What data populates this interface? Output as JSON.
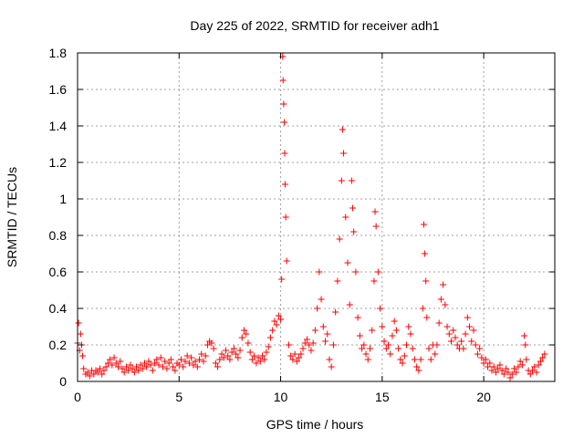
{
  "chart_data": {
    "type": "scatter",
    "title": "Day 225 of 2022, SRMTID for receiver adh1",
    "xlabel": "GPS time / hours",
    "ylabel": "SRMTID / TECUs",
    "xlim": [
      0,
      23.5
    ],
    "ylim": [
      0,
      1.8
    ],
    "x_ticks": [
      0,
      5,
      10,
      15,
      20
    ],
    "y_ticks": [
      0,
      0.2,
      0.4,
      0.6,
      0.8,
      1,
      1.2,
      1.4,
      1.6,
      1.8
    ],
    "x_tick_labels": [
      "0",
      "5",
      "10",
      "15",
      "20"
    ],
    "y_tick_labels": [
      "0",
      "0.2",
      "0.4",
      "0.6",
      "0.8",
      "1",
      "1.2",
      "1.4",
      "1.6",
      "1.8"
    ],
    "grid": true,
    "marker": "plus",
    "color": "#ff0000",
    "series": [
      {
        "name": "adh1",
        "points": [
          [
            0.0,
            0.21
          ],
          [
            0.05,
            0.32
          ],
          [
            0.1,
            0.17
          ],
          [
            0.15,
            0.26
          ],
          [
            0.2,
            0.2
          ],
          [
            0.25,
            0.14
          ],
          [
            0.3,
            0.07
          ],
          [
            0.4,
            0.04
          ],
          [
            0.5,
            0.05
          ],
          [
            0.6,
            0.03
          ],
          [
            0.7,
            0.06
          ],
          [
            0.8,
            0.04
          ],
          [
            0.9,
            0.06
          ],
          [
            1.0,
            0.05
          ],
          [
            1.1,
            0.07
          ],
          [
            1.2,
            0.04
          ],
          [
            1.3,
            0.06
          ],
          [
            1.4,
            0.08
          ],
          [
            1.5,
            0.1
          ],
          [
            1.6,
            0.12
          ],
          [
            1.7,
            0.09
          ],
          [
            1.8,
            0.13
          ],
          [
            1.9,
            0.1
          ],
          [
            2.0,
            0.08
          ],
          [
            2.1,
            0.11
          ],
          [
            2.2,
            0.07
          ],
          [
            2.3,
            0.05
          ],
          [
            2.4,
            0.08
          ],
          [
            2.5,
            0.06
          ],
          [
            2.6,
            0.09
          ],
          [
            2.7,
            0.07
          ],
          [
            2.8,
            0.05
          ],
          [
            2.9,
            0.08
          ],
          [
            3.0,
            0.06
          ],
          [
            3.1,
            0.09
          ],
          [
            3.2,
            0.07
          ],
          [
            3.3,
            0.1
          ],
          [
            3.4,
            0.08
          ],
          [
            3.5,
            0.11
          ],
          [
            3.6,
            0.09
          ],
          [
            3.7,
            0.06
          ],
          [
            3.8,
            0.1
          ],
          [
            3.9,
            0.12
          ],
          [
            4.0,
            0.09
          ],
          [
            4.1,
            0.13
          ],
          [
            4.2,
            0.08
          ],
          [
            4.3,
            0.11
          ],
          [
            4.4,
            0.07
          ],
          [
            4.5,
            0.1
          ],
          [
            4.6,
            0.12
          ],
          [
            4.7,
            0.08
          ],
          [
            4.8,
            0.06
          ],
          [
            4.9,
            0.1
          ],
          [
            5.0,
            0.09
          ],
          [
            5.1,
            0.12
          ],
          [
            5.2,
            0.08
          ],
          [
            5.3,
            0.11
          ],
          [
            5.4,
            0.14
          ],
          [
            5.5,
            0.1
          ],
          [
            5.6,
            0.13
          ],
          [
            5.7,
            0.09
          ],
          [
            5.8,
            0.11
          ],
          [
            5.9,
            0.08
          ],
          [
            6.0,
            0.12
          ],
          [
            6.1,
            0.15
          ],
          [
            6.2,
            0.11
          ],
          [
            6.3,
            0.14
          ],
          [
            6.4,
            0.2
          ],
          [
            6.5,
            0.22
          ],
          [
            6.6,
            0.21
          ],
          [
            6.7,
            0.18
          ],
          [
            6.8,
            0.1
          ],
          [
            6.9,
            0.08
          ],
          [
            7.0,
            0.12
          ],
          [
            7.1,
            0.15
          ],
          [
            7.2,
            0.13
          ],
          [
            7.3,
            0.17
          ],
          [
            7.4,
            0.14
          ],
          [
            7.5,
            0.12
          ],
          [
            7.6,
            0.16
          ],
          [
            7.7,
            0.18
          ],
          [
            7.8,
            0.15
          ],
          [
            7.9,
            0.13
          ],
          [
            8.0,
            0.17
          ],
          [
            8.1,
            0.24
          ],
          [
            8.2,
            0.28
          ],
          [
            8.3,
            0.26
          ],
          [
            8.4,
            0.21
          ],
          [
            8.5,
            0.16
          ],
          [
            8.6,
            0.12
          ],
          [
            8.7,
            0.14
          ],
          [
            8.8,
            0.1
          ],
          [
            8.9,
            0.13
          ],
          [
            9.0,
            0.11
          ],
          [
            9.1,
            0.14
          ],
          [
            9.2,
            0.12
          ],
          [
            9.3,
            0.16
          ],
          [
            9.4,
            0.19
          ],
          [
            9.5,
            0.24
          ],
          [
            9.6,
            0.28
          ],
          [
            9.7,
            0.33
          ],
          [
            9.8,
            0.31
          ],
          [
            9.9,
            0.36
          ],
          [
            10.0,
            0.34
          ],
          [
            10.05,
            0.56
          ],
          [
            10.1,
            1.78
          ],
          [
            10.12,
            1.65
          ],
          [
            10.15,
            1.52
          ],
          [
            10.18,
            1.42
          ],
          [
            10.2,
            1.25
          ],
          [
            10.22,
            1.08
          ],
          [
            10.25,
            0.9
          ],
          [
            10.3,
            0.66
          ],
          [
            10.4,
            0.2
          ],
          [
            10.5,
            0.14
          ],
          [
            10.6,
            0.12
          ],
          [
            10.7,
            0.15
          ],
          [
            10.8,
            0.11
          ],
          [
            10.9,
            0.13
          ],
          [
            11.0,
            0.15
          ],
          [
            11.1,
            0.18
          ],
          [
            11.2,
            0.21
          ],
          [
            11.3,
            0.23
          ],
          [
            11.4,
            0.2
          ],
          [
            11.5,
            0.17
          ],
          [
            11.6,
            0.21
          ],
          [
            11.7,
            0.28
          ],
          [
            11.8,
            0.4
          ],
          [
            11.9,
            0.6
          ],
          [
            12.0,
            0.45
          ],
          [
            12.1,
            0.3
          ],
          [
            12.2,
            0.22
          ],
          [
            12.3,
            0.26
          ],
          [
            12.4,
            0.12
          ],
          [
            12.5,
            0.08
          ],
          [
            12.6,
            0.2
          ],
          [
            12.7,
            0.38
          ],
          [
            12.8,
            0.55
          ],
          [
            12.9,
            0.78
          ],
          [
            13.0,
            1.1
          ],
          [
            13.05,
            1.38
          ],
          [
            13.1,
            1.25
          ],
          [
            13.2,
            0.9
          ],
          [
            13.3,
            0.65
          ],
          [
            13.4,
            0.42
          ],
          [
            13.5,
            1.1
          ],
          [
            13.55,
            0.95
          ],
          [
            13.6,
            0.82
          ],
          [
            13.7,
            0.6
          ],
          [
            13.8,
            0.35
          ],
          [
            13.9,
            0.25
          ],
          [
            14.0,
            0.18
          ],
          [
            14.1,
            0.2
          ],
          [
            14.2,
            0.15
          ],
          [
            14.3,
            0.12
          ],
          [
            14.4,
            0.18
          ],
          [
            14.5,
            0.28
          ],
          [
            14.6,
            0.55
          ],
          [
            14.65,
            0.93
          ],
          [
            14.7,
            0.85
          ],
          [
            14.8,
            0.6
          ],
          [
            14.9,
            0.4
          ],
          [
            15.0,
            0.3
          ],
          [
            15.1,
            0.22
          ],
          [
            15.2,
            0.18
          ],
          [
            15.3,
            0.2
          ],
          [
            15.4,
            0.15
          ],
          [
            15.5,
            0.25
          ],
          [
            15.6,
            0.33
          ],
          [
            15.7,
            0.28
          ],
          [
            15.8,
            0.18
          ],
          [
            15.9,
            0.12
          ],
          [
            16.0,
            0.1
          ],
          [
            16.1,
            0.14
          ],
          [
            16.2,
            0.2
          ],
          [
            16.3,
            0.3
          ],
          [
            16.4,
            0.26
          ],
          [
            16.5,
            0.18
          ],
          [
            16.6,
            0.12
          ],
          [
            16.7,
            0.08
          ],
          [
            16.8,
            0.06
          ],
          [
            16.9,
            0.12
          ],
          [
            17.0,
            0.4
          ],
          [
            17.05,
            0.86
          ],
          [
            17.1,
            0.7
          ],
          [
            17.15,
            0.55
          ],
          [
            17.2,
            0.35
          ],
          [
            17.3,
            0.18
          ],
          [
            17.4,
            0.12
          ],
          [
            17.5,
            0.2
          ],
          [
            17.6,
            0.15
          ],
          [
            17.7,
            0.2
          ],
          [
            17.8,
            0.32
          ],
          [
            17.9,
            0.45
          ],
          [
            18.0,
            0.53
          ],
          [
            18.1,
            0.42
          ],
          [
            18.2,
            0.3
          ],
          [
            18.3,
            0.26
          ],
          [
            18.4,
            0.22
          ],
          [
            18.5,
            0.28
          ],
          [
            18.6,
            0.24
          ],
          [
            18.7,
            0.2
          ],
          [
            18.8,
            0.18
          ],
          [
            18.9,
            0.22
          ],
          [
            19.0,
            0.18
          ],
          [
            19.1,
            0.26
          ],
          [
            19.2,
            0.35
          ],
          [
            19.3,
            0.3
          ],
          [
            19.4,
            0.22
          ],
          [
            19.5,
            0.28
          ],
          [
            19.6,
            0.2
          ],
          [
            19.7,
            0.15
          ],
          [
            19.8,
            0.18
          ],
          [
            19.9,
            0.13
          ],
          [
            20.0,
            0.1
          ],
          [
            20.1,
            0.12
          ],
          [
            20.2,
            0.08
          ],
          [
            20.3,
            0.1
          ],
          [
            20.4,
            0.06
          ],
          [
            20.5,
            0.08
          ],
          [
            20.6,
            0.05
          ],
          [
            20.7,
            0.07
          ],
          [
            20.8,
            0.09
          ],
          [
            20.9,
            0.06
          ],
          [
            21.0,
            0.04
          ],
          [
            21.1,
            0.07
          ],
          [
            21.2,
            0.05
          ],
          [
            21.3,
            0.02
          ],
          [
            21.4,
            0.04
          ],
          [
            21.5,
            0.07
          ],
          [
            21.6,
            0.05
          ],
          [
            21.7,
            0.08
          ],
          [
            21.8,
            0.11
          ],
          [
            21.9,
            0.09
          ],
          [
            22.0,
            0.25
          ],
          [
            22.05,
            0.2
          ],
          [
            22.1,
            0.12
          ],
          [
            22.2,
            0.06
          ],
          [
            22.3,
            0.04
          ],
          [
            22.4,
            0.06
          ],
          [
            22.5,
            0.08
          ],
          [
            22.6,
            0.05
          ],
          [
            22.7,
            0.09
          ],
          [
            22.8,
            0.11
          ],
          [
            22.9,
            0.13
          ],
          [
            23.0,
            0.15
          ]
        ]
      }
    ]
  }
}
